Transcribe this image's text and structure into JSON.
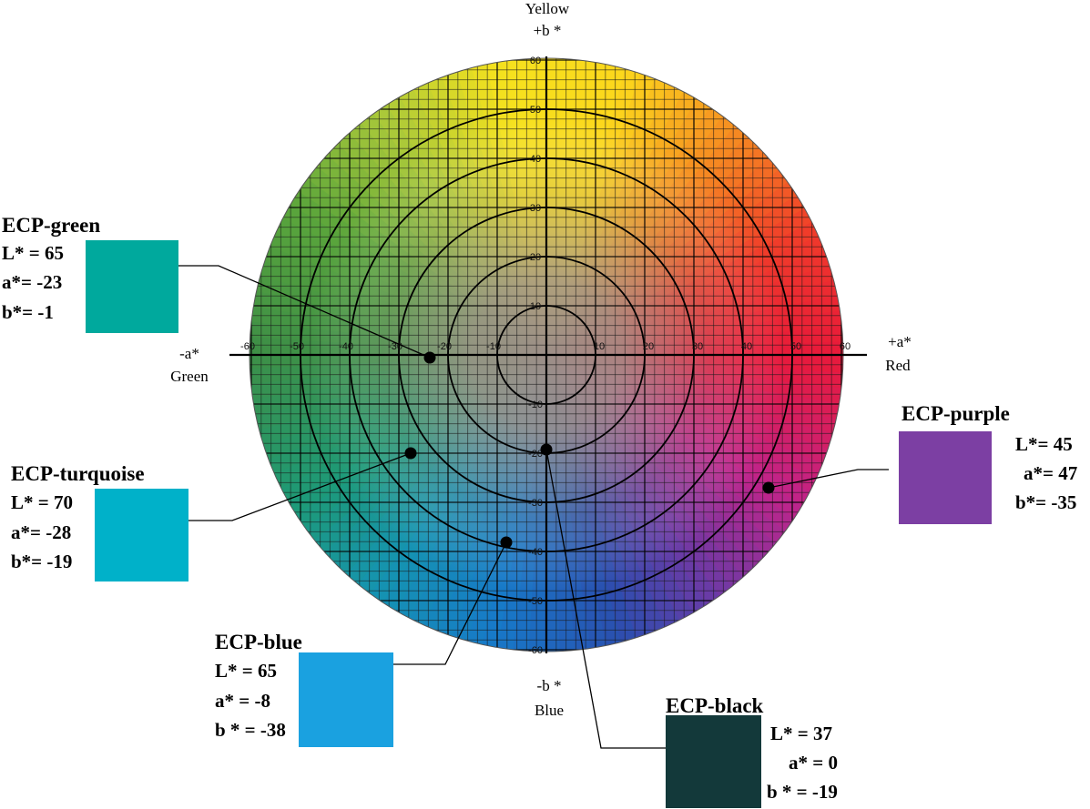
{
  "axes": {
    "top": {
      "name": "Yellow",
      "sign": "+b *"
    },
    "bottom": {
      "sign": "-b *",
      "name": "Blue"
    },
    "left": {
      "sign": "-a*",
      "name": "Green"
    },
    "right": {
      "sign": "+a*",
      "name": "Red"
    },
    "a_ticks": [
      "-60",
      "-50",
      "-40",
      "-30",
      "-20",
      "-10",
      "10",
      "20",
      "30",
      "40",
      "50",
      "60"
    ],
    "b_ticks": [
      "60",
      "50",
      "40",
      "30",
      "20",
      "10",
      "-10",
      "-20",
      "-30",
      "-40",
      "-50",
      "-60"
    ]
  },
  "colors": {
    "green": "#00a99d",
    "turquoise": "#00b1c9",
    "blue": "#1aa1e0",
    "black": "#13393a",
    "purple": "#7c3fa3"
  },
  "samples": [
    {
      "key": "green",
      "title": "ECP-green",
      "L": "L* = 65",
      "a": "a*= -23",
      "b": "b*= -1"
    },
    {
      "key": "turquoise",
      "title": "ECP-turquoise",
      "L": "L* = 70",
      "a": "a*= -28",
      "b": "b*= -19"
    },
    {
      "key": "blue",
      "title": "ECP-blue",
      "L": "L* = 65",
      "a": "a* = -8",
      "b": "b * = -38"
    },
    {
      "key": "black",
      "title": "ECP-black",
      "L": "L* = 37",
      "a": "a* = 0",
      "b": "b * = -19"
    },
    {
      "key": "purple",
      "title": "ECP-purple",
      "L": "L*= 45",
      "a": "a*= 47",
      "b": "b*= -35"
    }
  ]
}
